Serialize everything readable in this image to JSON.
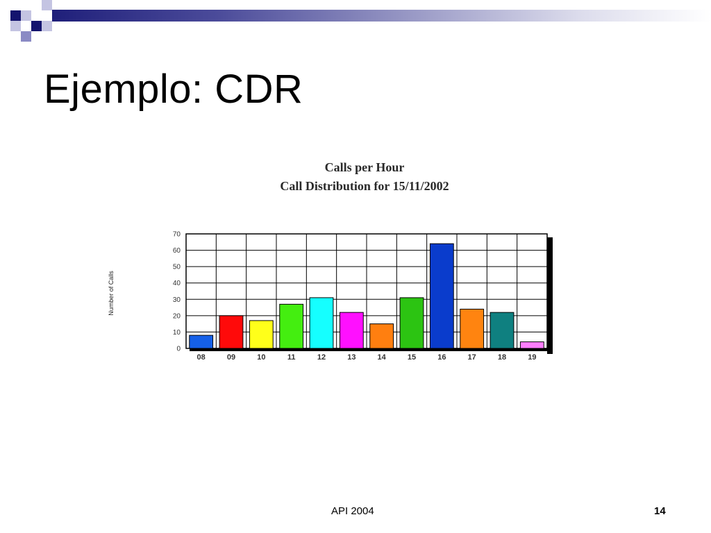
{
  "slide": {
    "title": "Ejemplo: CDR",
    "footer": "API 2004",
    "page_number": "14"
  },
  "chart_data": {
    "type": "bar",
    "title": "Calls per Hour",
    "subtitle": "Call Distribution for 15/11/2002",
    "xlabel": "",
    "ylabel": "Number of Calls",
    "categories": [
      "08",
      "09",
      "10",
      "11",
      "12",
      "13",
      "14",
      "15",
      "16",
      "17",
      "18",
      "19"
    ],
    "values": [
      8,
      20,
      17,
      27,
      31,
      22,
      15,
      31,
      64,
      24,
      22,
      4
    ],
    "colors": [
      "#1560e8",
      "#ff0a0a",
      "#ffff1a",
      "#44ee10",
      "#15ffff",
      "#ff10ff",
      "#ff7f10",
      "#2cc412",
      "#0a3ccc",
      "#ff8410",
      "#0f8080",
      "#ff7eff"
    ],
    "ylim": [
      0,
      70
    ],
    "yticks": [
      0,
      10,
      20,
      30,
      40,
      50,
      60,
      70
    ],
    "grid": true,
    "legend": "none"
  },
  "theme": {
    "deco_dark": "#14146e",
    "deco_mid": "#8a8ac4",
    "deco_light": "#c4c4e2"
  }
}
